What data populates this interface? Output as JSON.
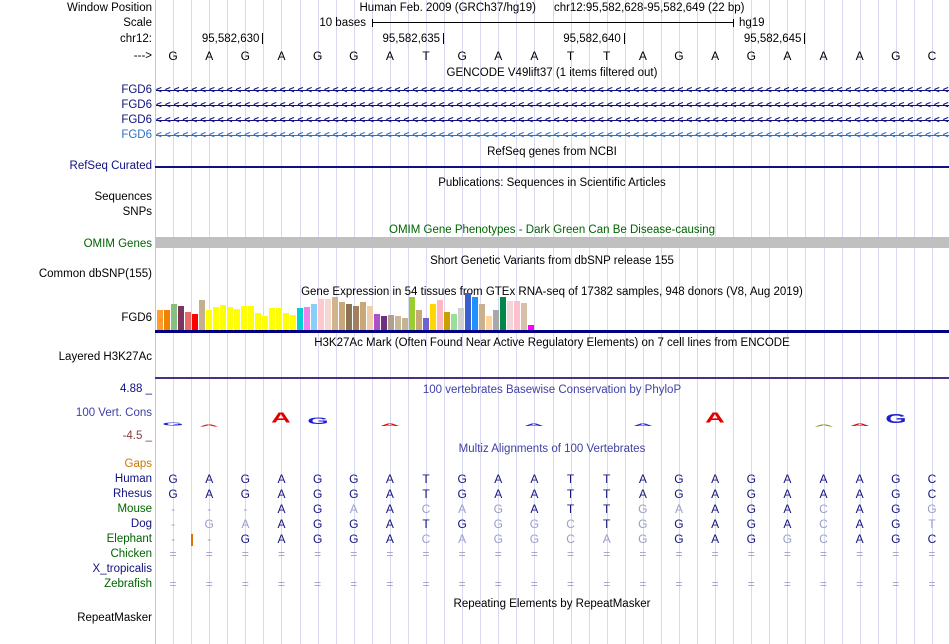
{
  "header": {
    "window_position_label": "Window Position",
    "assembly_text": "Human Feb. 2009 (GRCh37/hg19)",
    "position_text": "chr12:95,582,628-95,582,649 (22 bp)",
    "scale_label": "Scale",
    "scale_value": "10 bases",
    "assembly_short": "hg19",
    "chrom_label": "chr12:",
    "coordinate_ticks": [
      {
        "label": "95,582,630",
        "boundary_col": 3
      },
      {
        "label": "95,582,635",
        "boundary_col": 8
      },
      {
        "label": "95,582,640",
        "boundary_col": 13
      },
      {
        "label": "95,582,645",
        "boundary_col": 18
      }
    ],
    "strand_label": "--->",
    "bases": "GAGAGGATGAATTAGAGAAAGC"
  },
  "tracks": {
    "gencode": {
      "title": "GENCODE V49lift37 (1 items filtered out)",
      "transcripts": [
        {
          "name": "FGD6",
          "color": "#10107e"
        },
        {
          "name": "FGD6",
          "color": "#10107e"
        },
        {
          "name": "FGD6",
          "color": "#10107e"
        },
        {
          "name": "FGD6",
          "color": "#2f70c2"
        }
      ]
    },
    "refseq": {
      "title": "RefSeq genes from NCBI",
      "label": "RefSeq Curated"
    },
    "publications": {
      "title": "Publications: Sequences in Scientific Articles",
      "sequences_label": "Sequences",
      "snps_label": "SNPs"
    },
    "omim": {
      "title": "OMIM Gene Phenotypes - Dark Green Can Be Disease-causing",
      "label": "OMIM Genes",
      "bar_color": "#c0c0c0"
    },
    "dbsnp": {
      "title": "Short Genetic Variants from dbSNP release 155",
      "label": "Common dbSNP(155)"
    },
    "gtex": {
      "title": "Gene Expression in 54 tissues from GTEx RNA-seq of 17382 samples, 948 donors (V8, Aug 2019)",
      "label": "FGD6",
      "bars": [
        [
          "#ff9d2e",
          20
        ],
        [
          "#ef8300",
          20
        ],
        [
          "#86bf80",
          26
        ],
        [
          "#7d3560",
          24
        ],
        [
          "#e76a6a",
          18
        ],
        [
          "#ff0000",
          16
        ],
        [
          "#c3b091",
          30
        ],
        [
          "#ffff00",
          20
        ],
        [
          "#ffff00",
          23
        ],
        [
          "#ffff00",
          25
        ],
        [
          "#ffff00",
          23
        ],
        [
          "#ffff00",
          21
        ],
        [
          "#ffff00",
          24
        ],
        [
          "#ffff00",
          24
        ],
        [
          "#ffff00",
          17
        ],
        [
          "#ffff00",
          14
        ],
        [
          "#ffff00",
          22
        ],
        [
          "#ffff00",
          22
        ],
        [
          "#ffff00",
          17
        ],
        [
          "#ffff00",
          15
        ],
        [
          "#00ced1",
          22
        ],
        [
          "#ee82ee",
          23
        ],
        [
          "#87cefa",
          26
        ],
        [
          "#ffc8d0",
          31
        ],
        [
          "#f3d9d2",
          31
        ],
        [
          "#d2b48c",
          33
        ],
        [
          "#c8a878",
          28
        ],
        [
          "#8b7355",
          26
        ],
        [
          "#a08060",
          24
        ],
        [
          "#c8a878",
          28
        ],
        [
          "#eecfad",
          24
        ],
        [
          "#b050c8",
          16
        ],
        [
          "#703080",
          14
        ],
        [
          "#b0a090",
          15
        ],
        [
          "#c8b89a",
          14
        ],
        [
          "#c4b496",
          12
        ],
        [
          "#9acd32",
          33
        ],
        [
          "#c8a87a",
          20
        ],
        [
          "#7060d0",
          12
        ],
        [
          "#ffd700",
          26
        ],
        [
          "#ffb6c1",
          30
        ],
        [
          "#c8a000",
          18
        ],
        [
          "#98e098",
          16
        ],
        [
          "#d0d0d0",
          22
        ],
        [
          "#3a5fcd",
          37
        ],
        [
          "#2090ff",
          33
        ],
        [
          "#c8b090",
          26
        ],
        [
          "#ffd39b",
          14
        ],
        [
          "#a8a8a8",
          20
        ],
        [
          "#00884a",
          33
        ],
        [
          "#f0d8d8",
          29
        ],
        [
          "#ffc0cb",
          29
        ],
        [
          "#d8c0a8",
          27
        ],
        [
          "#ff00ff",
          5
        ]
      ]
    },
    "h3k27ac": {
      "title": "H3K27Ac Mark (Often Found Near Active Regulatory Elements) on 7 cell lines from ENCODE",
      "label": "Layered H3K27Ac"
    },
    "conservation": {
      "title": "100 vertebrates Basewise Conservation by PhyloP",
      "label": "100 Vert. Cons",
      "max_label": "4.88 _",
      "min_label": "-4.5 _",
      "letters": [
        {
          "col": 1,
          "ch": "G",
          "color": "#1f1fd1",
          "h": 4
        },
        {
          "col": 2,
          "ch": "A",
          "color": "#e00000",
          "h": 2
        },
        {
          "col": 4,
          "ch": "A",
          "color": "#e00000",
          "h": 13
        },
        {
          "col": 5,
          "ch": "G",
          "color": "#1f1fd1",
          "h": 8
        },
        {
          "col": 7,
          "ch": "A",
          "color": "#e00000",
          "h": 3
        },
        {
          "col": 11,
          "ch": "A",
          "color": "#1f1fd1",
          "h": 3
        },
        {
          "col": 14,
          "ch": "A",
          "color": "#1f1fd1",
          "h": 3
        },
        {
          "col": 16,
          "ch": "A",
          "color": "#e00000",
          "h": 13
        },
        {
          "col": 19,
          "ch": "A",
          "color": "#8f8f00",
          "h": 2
        },
        {
          "col": 20,
          "ch": "A",
          "color": "#e00000",
          "h": 3
        },
        {
          "col": 21,
          "ch": "G",
          "color": "#1f1fd1",
          "h": 11
        }
      ]
    },
    "multiz": {
      "title": "Multiz Alignments of 100 Vertebrates",
      "rows": [
        {
          "label": "Gaps",
          "label_color": "#cc7700",
          "seq": "",
          "dim": ""
        },
        {
          "label": "Human",
          "label_color": "#10107e",
          "seq": "GAGAGGATGAATTAGAGAAAGC",
          "dim": "0000000000000000000000"
        },
        {
          "label": "Rhesus",
          "label_color": "#10107e",
          "seq": "GAGAGGATGAATTAGAGAAAGC",
          "dim": "0000000000000000000000"
        },
        {
          "label": "Mouse",
          "label_color": "#006400",
          "seq": "---AGAACAGATTGAAGACAGG",
          "dim": "1110010111000110001001"
        },
        {
          "label": "Dog",
          "label_color": "#10107e",
          "seq": "-GAAGGATGGGCTGGAGACAGT",
          "dim": "1110000001110100001001"
        },
        {
          "label": "Elephant",
          "label_color": "#006400",
          "seq": "--GAGGACAGGCAGGAGGCAGC",
          "dim": "1100000111111100011000"
        },
        {
          "label": "Chicken",
          "label_color": "#006400",
          "seq": "======================",
          "dim": "1111111111111111111111"
        },
        {
          "label": "X_tropicalis",
          "label_color": "#10107e",
          "seq": "",
          "dim": ""
        },
        {
          "label": "Zebrafish",
          "label_color": "#006400",
          "seq": "======================",
          "dim": "1111111111111111111111"
        }
      ],
      "insertion_mark": {
        "row_label": "Elephant",
        "boundary_col": 1,
        "color": "#e07000"
      }
    },
    "repeatmasker": {
      "title": "Repeating Elements by RepeatMasker",
      "label": "RepeatMasker"
    }
  },
  "colors": {
    "guideline": "#d8d8f0",
    "left_border": "#ffb0a8",
    "dark_letter": "#16167e",
    "dim_letter": "#9aa0c8",
    "separator_purple": "#4a3080",
    "track_line_navy": "#000080"
  }
}
